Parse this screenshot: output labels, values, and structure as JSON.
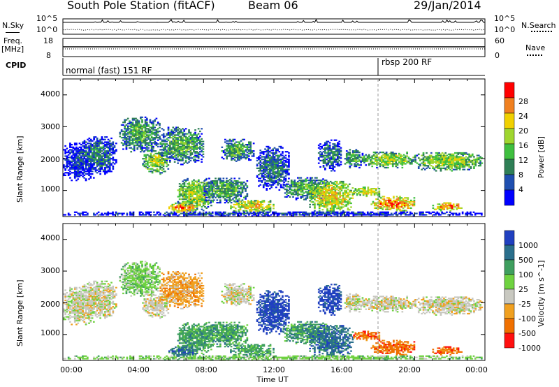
{
  "header": {
    "station": "South Pole Station (fitACF)",
    "beam": "Beam 06",
    "date": "29/Jan/2014"
  },
  "top_panels": {
    "nsky_label": "N.Sky",
    "nsearch_label": "N.Search",
    "noise_ticks_left": [
      "10^5",
      "10^0"
    ],
    "noise_ticks_right": [
      "10^5",
      "10^0"
    ],
    "freq_label_1": "Freq.",
    "freq_label_2": "[MHz]",
    "freq_ticks": [
      "18",
      "8"
    ],
    "nave_label": "Nave",
    "nave_ticks": [
      "60",
      "0"
    ],
    "cpid_label": "CPID",
    "cpid_modes": [
      "normal (fast) 151 RF",
      "rbsp 200 RF"
    ]
  },
  "axes": {
    "ylabel": "Slant Range [km]",
    "xlabel": "Time UT",
    "yticks": [
      "1000",
      "2000",
      "3000",
      "4000"
    ],
    "xticks": [
      "00:00",
      "04:00",
      "08:00",
      "12:00",
      "16:00",
      "20:00",
      "00:00"
    ]
  },
  "colors": {
    "power": [
      "#0000ff",
      "#1f4fb0",
      "#2f7f56",
      "#3fbf3f",
      "#9fd62f",
      "#f0d000",
      "#f08020",
      "#ff0000"
    ],
    "velocity": [
      "#2040c0",
      "#2a6f8c",
      "#3f9f5f",
      "#6fd240",
      "#c8c8c0",
      "#f0a020",
      "#f07000",
      "#ff1010"
    ]
  },
  "chart_data": [
    {
      "type": "heatmap",
      "quantity": "Power",
      "colorbar_label": "Power [dB]",
      "colorbar_ticks": [
        "4",
        "8",
        "12",
        "16",
        "20",
        "24",
        "28"
      ],
      "color_range": [
        0,
        32
      ],
      "xlim": [
        "00:00",
        "24:00"
      ],
      "ylim": [
        180,
        4500
      ],
      "xlabel": "Time UT",
      "ylabel": "Slant Range [km]",
      "grid": false
    },
    {
      "type": "heatmap",
      "quantity": "Velocity",
      "colorbar_label": "Velocity [m s^-1]",
      "colorbar_ticks": [
        "1000",
        "500",
        "100",
        "25",
        "-25",
        "-100",
        "-500",
        "-1000"
      ],
      "color_range": [
        -1000,
        1000
      ],
      "xlim": [
        "00:00",
        "24:00"
      ],
      "ylim": [
        180,
        4500
      ],
      "xlabel": "Time UT",
      "ylabel": "Slant Range [km]",
      "grid": false
    }
  ]
}
